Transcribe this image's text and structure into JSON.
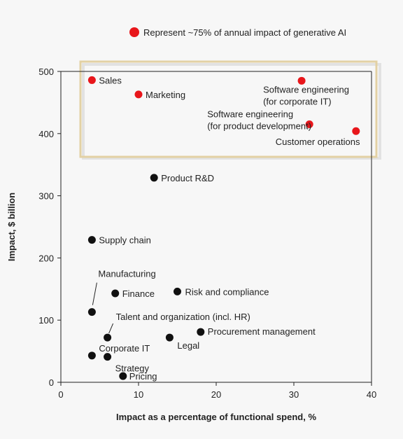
{
  "chart_data": {
    "type": "scatter",
    "xlabel": "Impact as a percentage of functional spend, %",
    "ylabel": "Impact, $ billion",
    "xlim": [
      0,
      40
    ],
    "ylim": [
      0,
      500
    ],
    "xticks": [
      0,
      10,
      20,
      30,
      40
    ],
    "yticks": [
      0,
      100,
      200,
      300,
      400,
      500
    ],
    "grid": false,
    "legend": {
      "label": "Represent ~75% of annual impact of generative AI",
      "color": "#e8161b",
      "placement": "top"
    },
    "colors": {
      "highlight": "#e8161b",
      "default": "#111111",
      "box": "#e3d1a4"
    },
    "points": [
      {
        "label": "Sales",
        "x": 4,
        "y": 486,
        "highlight": true
      },
      {
        "label": "Marketing",
        "x": 10,
        "y": 463,
        "highlight": true
      },
      {
        "label": "Software engineering (for corporate IT)",
        "x": 31,
        "y": 485,
        "highlight": true
      },
      {
        "label": "Software engineering (for product development)",
        "x": 32,
        "y": 415,
        "highlight": true
      },
      {
        "label": "Customer operations",
        "x": 38,
        "y": 404,
        "highlight": true
      },
      {
        "label": "Product R&D",
        "x": 12,
        "y": 329,
        "highlight": false
      },
      {
        "label": "Supply chain",
        "x": 4,
        "y": 229,
        "highlight": false
      },
      {
        "label": "Manufacturing",
        "x": 4,
        "y": 113,
        "highlight": false
      },
      {
        "label": "Finance",
        "x": 7,
        "y": 143,
        "highlight": false
      },
      {
        "label": "Risk and compliance",
        "x": 15,
        "y": 146,
        "highlight": false
      },
      {
        "label": "Talent and organization (incl. HR)",
        "x": 6,
        "y": 72,
        "highlight": false
      },
      {
        "label": "Procurement management",
        "x": 18,
        "y": 81,
        "highlight": false
      },
      {
        "label": "Legal",
        "x": 14,
        "y": 72,
        "highlight": false
      },
      {
        "label": "Corporate IT",
        "x": 4,
        "y": 43,
        "highlight": false
      },
      {
        "label": "Strategy",
        "x": 6,
        "y": 41,
        "highlight": false
      },
      {
        "label": "Pricing",
        "x": 8,
        "y": 10,
        "highlight": false
      }
    ]
  }
}
